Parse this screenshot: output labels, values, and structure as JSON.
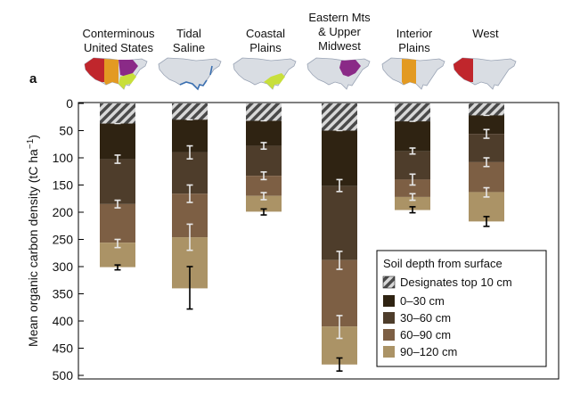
{
  "chart_data": {
    "type": "bar",
    "panel_label": "a",
    "categories": [
      [
        "Conterminous",
        "United States"
      ],
      [
        "Tidal",
        "Saline"
      ],
      [
        "Coastal",
        "Plains"
      ],
      [
        "Eastern Mts",
        "& Upper",
        "Midwest"
      ],
      [
        "Interior",
        "Plains"
      ],
      [
        "West"
      ]
    ],
    "ylabel": "Mean organic carbon density (tC ha",
    "ylabel_sup": "−1",
    "ylabel_close": ")",
    "ylim": [
      0,
      500
    ],
    "y_inverted": true,
    "yticks": [
      0,
      50,
      100,
      150,
      200,
      250,
      300,
      350,
      400,
      450,
      500
    ],
    "top10_cumulative": [
      37,
      30,
      32,
      50,
      33,
      22
    ],
    "series": [
      {
        "name": "0–30 cm",
        "cumulative": [
          103,
          90,
          78,
          152,
          88,
          56
        ],
        "error": [
          [
            95,
            110
          ],
          [
            78,
            102
          ],
          [
            72,
            84
          ],
          [
            140,
            162
          ],
          [
            82,
            93
          ],
          [
            48,
            64
          ]
        ]
      },
      {
        "name": "30–60 cm",
        "cumulative": [
          185,
          166,
          133,
          288,
          140,
          108
        ],
        "error": [
          [
            178,
            192
          ],
          [
            150,
            182
          ],
          [
            126,
            140
          ],
          [
            272,
            305
          ],
          [
            130,
            150
          ],
          [
            100,
            116
          ]
        ]
      },
      {
        "name": "60–90 cm",
        "cumulative": [
          256,
          246,
          170,
          410,
          172,
          163
        ],
        "error": [
          [
            250,
            265
          ],
          [
            222,
            270
          ],
          [
            164,
            177
          ],
          [
            390,
            432
          ],
          [
            166,
            178
          ],
          [
            155,
            172
          ]
        ]
      },
      {
        "name": "90–120 cm",
        "cumulative": [
          301,
          340,
          199,
          480,
          196,
          217
        ],
        "error": [
          [
            297,
            306
          ],
          [
            300,
            378
          ],
          [
            194,
            205
          ],
          [
            468,
            492
          ],
          [
            190,
            201
          ],
          [
            208,
            226
          ]
        ]
      }
    ],
    "colors": [
      "#2f2312",
      "#4e3d2b",
      "#7d5f44",
      "#ab9366"
    ],
    "top10_color": "#444444",
    "legend": {
      "title": "Soil depth from surface",
      "top10_label": "Designates top 10 cm",
      "placement": "bottom-right"
    },
    "grid": false,
    "maps": [
      {
        "name": "conterminous",
        "highlight": "multi"
      },
      {
        "name": "tidal-saline",
        "highlight": "coast"
      },
      {
        "name": "coastal-plains",
        "highlight": "#c8df3b"
      },
      {
        "name": "eastern-mts",
        "highlight": "#8a2a87"
      },
      {
        "name": "interior-plains",
        "highlight": "#e39a22"
      },
      {
        "name": "west",
        "highlight": "#c0262c"
      }
    ]
  }
}
